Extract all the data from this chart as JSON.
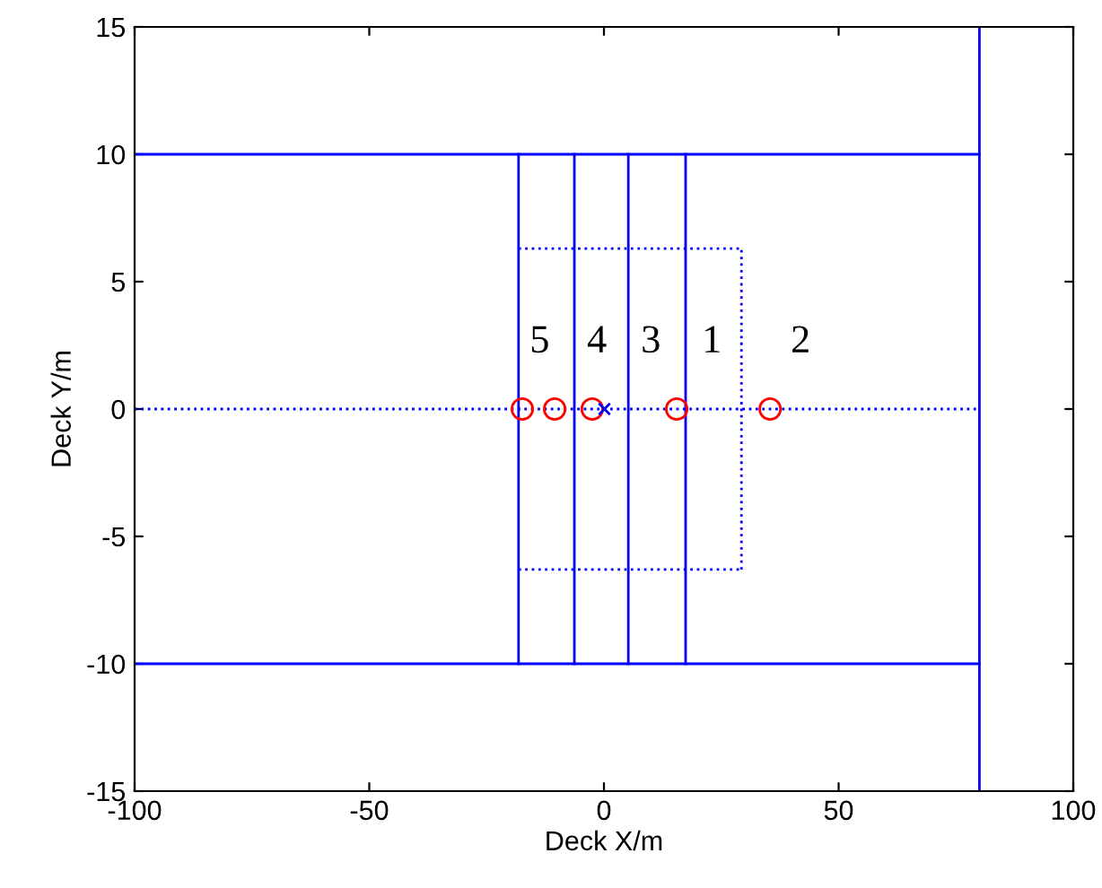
{
  "chart_data": {
    "type": "line",
    "xlabel": "Deck X/m",
    "ylabel": "Deck Y/m",
    "xlim": [
      -100,
      100
    ],
    "ylim": [
      -15,
      15
    ],
    "xticks": [
      -100,
      -50,
      0,
      50,
      100
    ],
    "yticks": [
      -15,
      -10,
      -5,
      0,
      5,
      10,
      15
    ],
    "grid": false,
    "series": [
      {
        "color": "#0000ff",
        "x": [
          -100,
          80
        ],
        "values": [
          10,
          10
        ],
        "line_style": "solid"
      },
      {
        "color": "#0000ff",
        "x": [
          -100,
          80
        ],
        "values": [
          -10,
          -10
        ],
        "line_style": "solid"
      },
      {
        "color": "#0000ff",
        "x": [
          -18.2,
          -18.2
        ],
        "values": [
          -10,
          10
        ],
        "line_style": "solid"
      },
      {
        "color": "#0000ff",
        "x": [
          -6.3,
          -6.3
        ],
        "values": [
          -10,
          10
        ],
        "line_style": "solid"
      },
      {
        "color": "#0000ff",
        "x": [
          5.2,
          5.2
        ],
        "values": [
          -10,
          10
        ],
        "line_style": "solid"
      },
      {
        "color": "#0000ff",
        "x": [
          17.4,
          17.4
        ],
        "values": [
          -10,
          10
        ],
        "line_style": "solid"
      },
      {
        "color": "#0000ff",
        "x": [
          80,
          80
        ],
        "values": [
          -15,
          15
        ],
        "line_style": "solid"
      },
      {
        "color": "#0000ff",
        "x": [
          -18.2,
          29.3
        ],
        "values": [
          6.3,
          6.3
        ],
        "line_style": "dotted"
      },
      {
        "color": "#0000ff",
        "x": [
          -18.2,
          29.3
        ],
        "values": [
          -6.3,
          -6.3
        ],
        "line_style": "dotted"
      },
      {
        "color": "#0000ff",
        "x": [
          29.3,
          29.3
        ],
        "values": [
          -6.3,
          6.3
        ],
        "line_style": "dotted"
      },
      {
        "color": "#0000ff",
        "x": [
          -100,
          80
        ],
        "values": [
          0,
          0
        ],
        "line_style": "dotted"
      },
      {
        "type": "scatter",
        "color": "#ff0000",
        "marker": "circle",
        "x": [
          -17.4,
          -10.5,
          -2.5,
          15.5,
          35.4
        ],
        "values": [
          0,
          0,
          0,
          0,
          0
        ]
      },
      {
        "type": "scatter",
        "color": "#0000ff",
        "marker": "cross",
        "x": [
          0.1
        ],
        "values": [
          0
        ]
      }
    ],
    "annotations": [
      "5",
      "4",
      "3",
      "1",
      "2"
    ]
  }
}
